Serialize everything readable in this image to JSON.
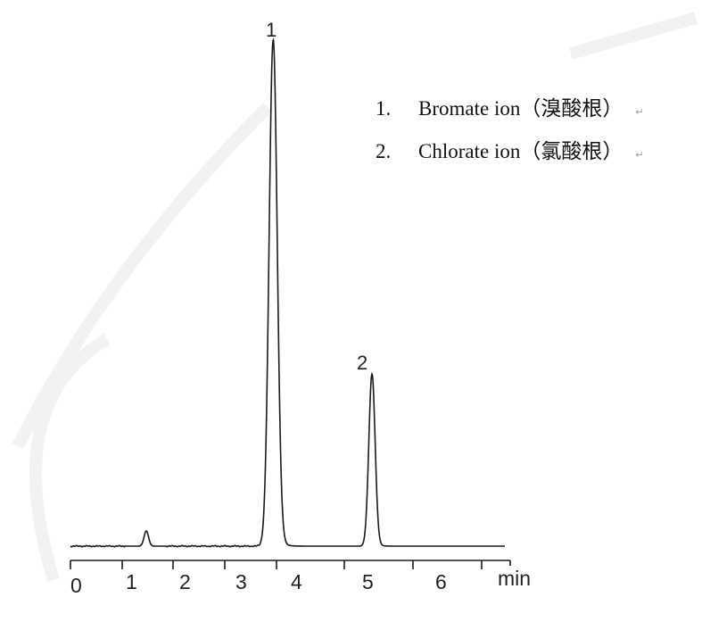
{
  "chart_data": {
    "type": "line",
    "title": "",
    "xlabel": "min",
    "ylabel": "",
    "x_ticks": [
      "0",
      "1",
      "2",
      "3",
      "4",
      "5",
      "6"
    ],
    "x_unit_label": "min",
    "xlim": [
      0,
      6.5
    ],
    "grid": false,
    "y_axis_shown": false,
    "line_color": "#1a1a1a",
    "baseline": 0,
    "peaks": [
      {
        "label": "1",
        "retention_time": 3.6,
        "relative_height": 1.0
      },
      {
        "label": "2",
        "retention_time": 5.0,
        "relative_height": 0.34
      },
      {
        "label": "",
        "retention_time": 1.3,
        "relative_height": 0.03
      }
    ],
    "legend": [
      {
        "number": "1.",
        "name": "Bromate ion（溴酸根）"
      },
      {
        "number": "2.",
        "name": "Chlorate ion（氯酸根）"
      }
    ],
    "legend_placement": "top-right"
  }
}
